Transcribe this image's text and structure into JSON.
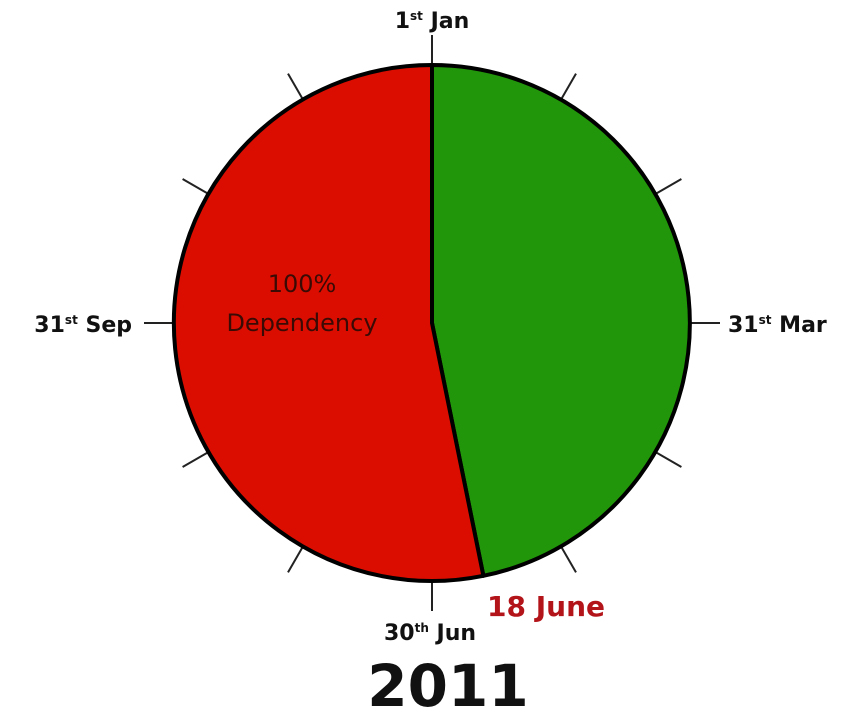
{
  "labels": {
    "jan": {
      "num": "1",
      "sup": "st",
      "rest": " Jan"
    },
    "mar": {
      "num": "31",
      "sup": "st",
      "rest": " Mar"
    },
    "jun": {
      "num": "30",
      "sup": "th",
      "rest": " Jun"
    },
    "sep": {
      "num": "31",
      "sup": "st",
      "rest": " Sep"
    }
  },
  "marker": "18 June",
  "center_text": [
    "100%",
    "Dependency"
  ],
  "year": "2011"
}
